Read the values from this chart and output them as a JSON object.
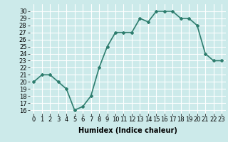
{
  "x": [
    0,
    1,
    2,
    3,
    4,
    5,
    6,
    7,
    8,
    9,
    10,
    11,
    12,
    13,
    14,
    15,
    16,
    17,
    18,
    19,
    20,
    21,
    22,
    23
  ],
  "y": [
    20,
    21,
    21,
    20,
    19,
    16,
    16.5,
    18,
    22,
    25,
    27,
    27,
    27,
    29,
    28.5,
    30,
    30,
    30,
    29,
    29,
    28,
    24,
    23,
    23
  ],
  "line_color": "#2e7d6e",
  "marker": "D",
  "marker_size": 2,
  "bg_color": "#cceaea",
  "grid_color": "#ffffff",
  "xlabel": "Humidex (Indice chaleur)",
  "xlabel_fontsize": 7,
  "ylabel_ticks": [
    16,
    17,
    18,
    19,
    20,
    21,
    22,
    23,
    24,
    25,
    26,
    27,
    28,
    29,
    30
  ],
  "xlim": [
    -0.5,
    23.5
  ],
  "ylim": [
    15.5,
    31
  ],
  "tick_fontsize": 6,
  "line_width": 1.2
}
